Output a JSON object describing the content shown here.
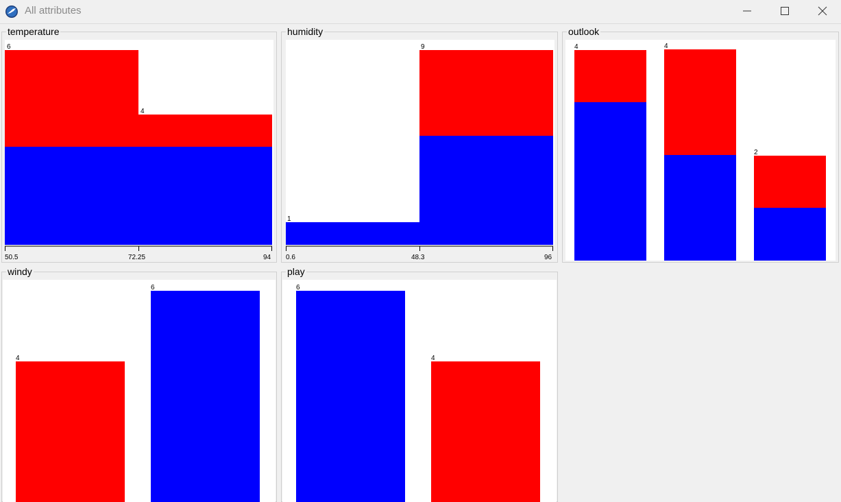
{
  "window": {
    "title": "All attributes",
    "icon": "weka-bird-icon"
  },
  "colors": {
    "class_a": "#0000ff",
    "class_b": "#ff0000"
  },
  "panels": {
    "temperature": {
      "label": "temperature",
      "axis": [
        "50.5",
        "72.25",
        "94"
      ],
      "counts": [
        "6",
        "4"
      ]
    },
    "humidity": {
      "label": "humidity",
      "axis": [
        "0.6",
        "48.3",
        "96"
      ],
      "counts": [
        "1",
        "9"
      ]
    },
    "outlook": {
      "label": "outlook",
      "counts": [
        "4",
        "4",
        "2"
      ]
    },
    "windy": {
      "label": "windy",
      "counts": [
        "4",
        "6"
      ]
    },
    "play": {
      "label": "play",
      "counts": [
        "6",
        "4"
      ]
    }
  },
  "chart_data": [
    {
      "type": "bar",
      "title": "temperature",
      "categories": [
        "50.5-72.25",
        "72.25-94"
      ],
      "series": [
        {
          "values": [
            3,
            3
          ]
        },
        {
          "values": [
            3,
            1
          ]
        }
      ],
      "totals": [
        6,
        4
      ],
      "ylim": [
        0,
        6
      ],
      "stacked": true,
      "histogram": true
    },
    {
      "type": "bar",
      "title": "humidity",
      "categories": [
        "0.6-48.3",
        "48.3-96"
      ],
      "series": [
        {
          "values": [
            1,
            5
          ]
        },
        {
          "values": [
            0,
            4
          ]
        }
      ],
      "totals": [
        1,
        9
      ],
      "ylim": [
        0,
        9
      ],
      "stacked": true,
      "histogram": true
    },
    {
      "type": "bar",
      "title": "outlook",
      "categories": [
        "",
        "",
        ""
      ],
      "series": [
        {
          "values": [
            3,
            2,
            1
          ]
        },
        {
          "values": [
            1,
            2,
            1
          ]
        }
      ],
      "totals": [
        4,
        4,
        2
      ],
      "ylim": [
        0,
        4
      ],
      "stacked": true
    },
    {
      "type": "bar",
      "title": "windy",
      "categories": [
        "",
        ""
      ],
      "series": [
        {
          "values": [
            0,
            6
          ]
        },
        {
          "values": [
            4,
            0
          ]
        }
      ],
      "totals": [
        4,
        6
      ],
      "ylim": [
        0,
        6
      ],
      "stacked": true
    },
    {
      "type": "bar",
      "title": "play",
      "categories": [
        "",
        ""
      ],
      "series": [
        {
          "values": [
            6,
            0
          ]
        },
        {
          "values": [
            0,
            4
          ]
        }
      ],
      "totals": [
        6,
        4
      ],
      "ylim": [
        0,
        6
      ],
      "stacked": true
    }
  ]
}
